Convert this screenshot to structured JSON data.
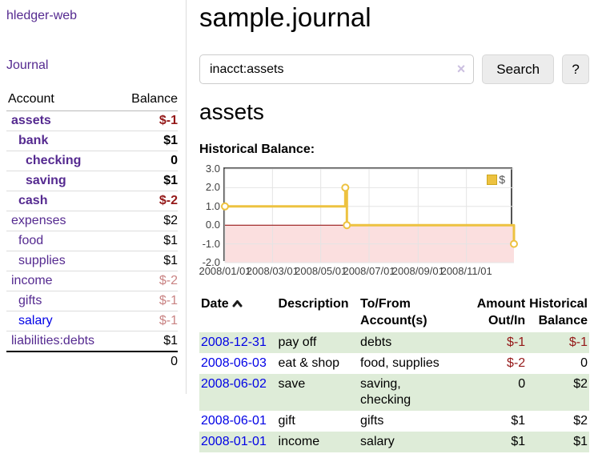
{
  "colors": {
    "link_purple": "#552a90",
    "link_blue": "#0000e6",
    "neg_strong": "#941818",
    "neg_soft": "#c98383",
    "row_stripe_green": "#deecd8",
    "chart_line_gold": "#edc240",
    "chart_negative_fill": "#fbdfdf",
    "chart_zero_line": "#8b0000"
  },
  "sidebar": {
    "brand": "hledger-web",
    "nav_journal": "Journal",
    "accounts": {
      "col_account": "Account",
      "col_balance": "Balance",
      "rows": [
        {
          "name": "assets",
          "balance": "$-1",
          "depth": 0,
          "in_filter": true,
          "balance_style": "neg-strong",
          "link_style": "purple"
        },
        {
          "name": "bank",
          "balance": "$1",
          "depth": 1,
          "in_filter": true,
          "balance_style": "pos",
          "link_style": "purple"
        },
        {
          "name": "checking",
          "balance": "0",
          "depth": 2,
          "in_filter": true,
          "balance_style": "pos",
          "link_style": "purple"
        },
        {
          "name": "saving",
          "balance": "$1",
          "depth": 2,
          "in_filter": true,
          "balance_style": "pos",
          "link_style": "purple"
        },
        {
          "name": "cash",
          "balance": "$-2",
          "depth": 1,
          "in_filter": true,
          "balance_style": "neg-strong",
          "link_style": "purple"
        },
        {
          "name": "expenses",
          "balance": "$2",
          "depth": 0,
          "in_filter": false,
          "balance_style": "pos",
          "link_style": "purple"
        },
        {
          "name": "food",
          "balance": "$1",
          "depth": 1,
          "in_filter": false,
          "balance_style": "pos",
          "link_style": "purple"
        },
        {
          "name": "supplies",
          "balance": "$1",
          "depth": 1,
          "in_filter": false,
          "balance_style": "pos",
          "link_style": "purple"
        },
        {
          "name": "income",
          "balance": "$-2",
          "depth": 0,
          "in_filter": false,
          "balance_style": "neg-soft",
          "link_style": "purple"
        },
        {
          "name": "gifts",
          "balance": "$-1",
          "depth": 1,
          "in_filter": false,
          "balance_style": "neg-soft",
          "link_style": "purple"
        },
        {
          "name": "salary",
          "balance": "$-1",
          "depth": 1,
          "in_filter": false,
          "balance_style": "neg-soft",
          "link_style": "blue"
        },
        {
          "name": "liabilities:debts",
          "balance": "$1",
          "depth": 0,
          "in_filter": false,
          "balance_style": "pos",
          "link_style": "purple"
        }
      ],
      "total": "0"
    }
  },
  "main": {
    "title": "sample.journal",
    "search": {
      "value": "inacct:assets",
      "clear_icon": "×",
      "search_button": "Search",
      "help_button": "?"
    },
    "heading": "assets",
    "chart_title": "Historical Balance:"
  },
  "chart_data": {
    "type": "line",
    "step": true,
    "title": "Historical Balance:",
    "legend": [
      {
        "label": "$",
        "color": "#edc240"
      }
    ],
    "legend_position": "top-right",
    "grid": true,
    "x_range": [
      "2008-01-01",
      "2008-12-31"
    ],
    "ylim": [
      -2,
      3
    ],
    "y_ticks": [
      {
        "value": 3,
        "label": "3.0"
      },
      {
        "value": 2,
        "label": "2.0"
      },
      {
        "value": 1,
        "label": "1.0"
      },
      {
        "value": 0,
        "label": "0.0"
      },
      {
        "value": -1,
        "label": "-1.0"
      },
      {
        "value": -2,
        "label": "-2.0"
      }
    ],
    "x_ticks": [
      {
        "date": "2008-01-01",
        "label": "2008/01/01"
      },
      {
        "date": "2008-03-01",
        "label": "2008/03/01"
      },
      {
        "date": "2008-05-01",
        "label": "2008/05/01"
      },
      {
        "date": "2008-07-01",
        "label": "2008/07/01"
      },
      {
        "date": "2008-09-01",
        "label": "2008/09/01"
      },
      {
        "date": "2008-11-01",
        "label": "2008/11/01"
      }
    ],
    "series": [
      {
        "name": "$",
        "color": "#edc240",
        "points": [
          [
            "2008-01-01",
            1
          ],
          [
            "2008-06-01",
            2
          ],
          [
            "2008-06-03",
            0
          ],
          [
            "2008-12-31",
            -1
          ]
        ]
      }
    ]
  },
  "register": {
    "headers": [
      {
        "label": "Date",
        "sorted": "asc"
      },
      {
        "label": "Description"
      },
      {
        "label": "To/From\nAccount(s)"
      },
      {
        "label": "Amount\nOut/In"
      },
      {
        "label": "Historical\nBalance"
      }
    ],
    "rows": [
      {
        "date": "2008-12-31",
        "description": "pay off",
        "accounts": "debts",
        "amount": "$-1",
        "amount_neg": true,
        "balance": "$-1",
        "balance_neg": true,
        "highlight": true
      },
      {
        "date": "2008-06-03",
        "description": "eat & shop",
        "accounts": "food, supplies",
        "amount": "$-2",
        "amount_neg": true,
        "balance": "0",
        "balance_neg": false,
        "highlight": false
      },
      {
        "date": "2008-06-02",
        "description": "save",
        "accounts": "saving,\nchecking",
        "amount": "0",
        "amount_neg": false,
        "balance": "$2",
        "balance_neg": false,
        "highlight": true
      },
      {
        "date": "2008-06-01",
        "description": "gift",
        "accounts": "gifts",
        "amount": "$1",
        "amount_neg": false,
        "balance": "$2",
        "balance_neg": false,
        "highlight": false
      },
      {
        "date": "2008-01-01",
        "description": "income",
        "accounts": "salary",
        "amount": "$1",
        "amount_neg": false,
        "balance": "$1",
        "balance_neg": false,
        "highlight": true
      }
    ]
  }
}
